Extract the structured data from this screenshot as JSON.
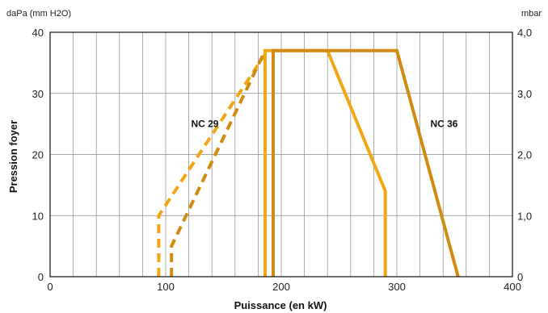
{
  "chart_data": {
    "type": "line",
    "left_unit": "daPa (mm H2O)",
    "right_unit": "mbar",
    "xlabel": "Puissance (en kW)",
    "ylabel": "Pression foyer",
    "xlim": [
      0,
      400
    ],
    "ylim": [
      0,
      40
    ],
    "x_ticks": [
      "0",
      "100",
      "200",
      "300",
      "400"
    ],
    "y_ticks_left": [
      "0",
      "10",
      "20",
      "30",
      "40"
    ],
    "y_ticks_right": [
      "0",
      "1,0",
      "2,0",
      "3,0",
      "4,0"
    ],
    "grid": true,
    "colors": {
      "light": "#f2a614",
      "dark": "#d18b10",
      "grid": "#888888"
    },
    "series": [
      {
        "key": "nc29_dashed",
        "color": "light",
        "dashed": true,
        "points": [
          [
            94,
            0
          ],
          [
            94,
            10
          ],
          [
            188,
            37
          ]
        ]
      },
      {
        "key": "nc36_dashed",
        "color": "dark",
        "dashed": true,
        "points": [
          [
            105,
            0
          ],
          [
            105,
            5
          ],
          [
            186,
            37
          ]
        ]
      },
      {
        "key": "nc29_solid",
        "color": "light",
        "dashed": false,
        "points": [
          [
            186,
            0
          ],
          [
            186,
            37
          ],
          [
            240,
            37
          ],
          [
            290,
            14
          ],
          [
            290,
            0
          ]
        ]
      },
      {
        "key": "nc36_solid",
        "color": "dark",
        "dashed": false,
        "points": [
          [
            193,
            0
          ],
          [
            193,
            37
          ],
          [
            300,
            37
          ],
          [
            353,
            0
          ]
        ]
      }
    ],
    "annotations": [
      {
        "text": "NC 29",
        "x": 122,
        "y": 25
      },
      {
        "text": "NC 36",
        "x": 329,
        "y": 25
      }
    ]
  }
}
